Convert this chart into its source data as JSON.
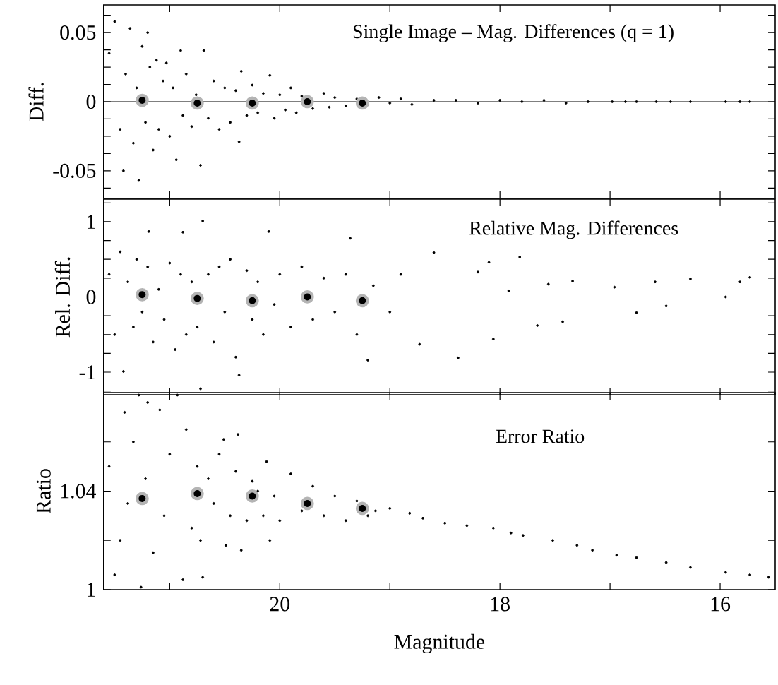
{
  "chart_data": [
    {
      "type": "scatter",
      "title": "Single Image – Mag. Differences (q = 1)",
      "ylabel": "Diff.",
      "xlim": [
        21.6,
        15.5
      ],
      "ylim": [
        -0.07,
        0.07
      ],
      "xticks": [
        {
          "value": 21,
          "label": null
        },
        20,
        {
          "value": 19,
          "label": null
        },
        18,
        {
          "value": 17,
          "label": null
        },
        16
      ],
      "yticks": [
        {
          "value": -0.0625,
          "label": null
        },
        -0.05,
        {
          "value": -0.0375,
          "label": null
        },
        {
          "value": -0.025,
          "label": null
        },
        {
          "value": -0.0125,
          "label": null
        },
        0,
        {
          "value": 0.0125,
          "label": null
        },
        {
          "value": 0.025,
          "label": null
        },
        {
          "value": 0.0375,
          "label": null
        },
        0.05,
        {
          "value": 0.0625,
          "label": null
        }
      ],
      "tick_labels": "y",
      "marker": "circle",
      "ref_lines": [
        {
          "axis": "y",
          "value": 0,
          "color": "#000000"
        }
      ],
      "series": [
        {
          "color": "#000000",
          "x": [
            21.55,
            21.5,
            21.45,
            21.42,
            21.4,
            21.36,
            21.33,
            21.3,
            21.28,
            21.25,
            21.22,
            21.2,
            21.18,
            21.15,
            21.12,
            21.1,
            21.06,
            21.03,
            21.0,
            20.97,
            20.94,
            20.9,
            20.88,
            20.85,
            20.8,
            20.76,
            20.72,
            20.69,
            20.65,
            20.6,
            20.55,
            20.5,
            20.45,
            20.4,
            20.37,
            20.35,
            20.3,
            20.25,
            20.2,
            20.15,
            20.09,
            20.05,
            20.0,
            19.95,
            19.9,
            19.85,
            19.8,
            19.7,
            19.6,
            19.55,
            19.5,
            19.4,
            19.3,
            19.2,
            19.1,
            19.0,
            18.9,
            18.8,
            18.6,
            18.4,
            18.2,
            18.0,
            17.8,
            17.6,
            17.4,
            17.2,
            16.98,
            16.86,
            16.76,
            16.58,
            16.45,
            16.27,
            15.95,
            15.82,
            15.73
          ],
          "values": [
            0.035,
            0.058,
            -0.02,
            -0.05,
            0.02,
            0.053,
            -0.03,
            0.01,
            -0.057,
            0.04,
            -0.015,
            0.05,
            0.025,
            -0.035,
            0.03,
            -0.02,
            0.015,
            0.028,
            -0.025,
            0.01,
            -0.042,
            0.037,
            -0.01,
            0.02,
            -0.018,
            0.005,
            -0.046,
            0.037,
            -0.012,
            0.015,
            -0.02,
            0.01,
            -0.015,
            0.008,
            -0.029,
            0.022,
            -0.01,
            0.012,
            -0.008,
            0.006,
            0.019,
            -0.012,
            0.005,
            -0.006,
            0.01,
            -0.008,
            0.004,
            -0.005,
            0.006,
            -0.004,
            0.003,
            -0.003,
            0.002,
            -0.002,
            0.003,
            -0.001,
            0.002,
            -0.002,
            0.001,
            0.001,
            -0.001,
            0.001,
            0,
            0.001,
            -0.001,
            0,
            0,
            0,
            0,
            0,
            0,
            0,
            0,
            0,
            0
          ]
        },
        {
          "color": "#b4b4b4",
          "marker": "circle",
          "x": [
            21.25,
            20.75,
            20.25,
            19.75,
            19.25
          ],
          "values": [
            0.001,
            -0.001,
            -0.001,
            0,
            -0.001
          ]
        }
      ]
    },
    {
      "type": "scatter",
      "title": "Relative Mag. Differences",
      "ylabel": "Rel. Diff.",
      "xlim": [
        21.6,
        15.5
      ],
      "ylim": [
        -1.3,
        1.3
      ],
      "xticks": [
        {
          "value": 21,
          "label": null
        },
        20,
        {
          "value": 19,
          "label": null
        },
        18,
        {
          "value": 17,
          "label": null
        },
        16
      ],
      "yticks": [
        {
          "value": -1.25,
          "label": null
        },
        -1,
        {
          "value": -0.75,
          "label": null
        },
        {
          "value": -0.5,
          "label": null
        },
        {
          "value": -0.25,
          "label": null
        },
        0,
        {
          "value": 0.25,
          "label": null
        },
        {
          "value": 0.5,
          "label": null
        },
        {
          "value": 0.75,
          "label": null
        },
        1,
        {
          "value": 1.25,
          "label": null
        }
      ],
      "tick_labels": "y",
      "marker": "circle",
      "ref_lines": [
        {
          "axis": "y",
          "value": 0,
          "color": "#000000"
        }
      ],
      "series": [
        {
          "color": "#000000",
          "x": [
            21.55,
            21.5,
            21.45,
            21.42,
            21.38,
            21.33,
            21.3,
            21.25,
            21.2,
            21.19,
            21.15,
            21.1,
            21.05,
            21.0,
            20.95,
            20.9,
            20.88,
            20.85,
            20.8,
            20.75,
            20.72,
            20.7,
            20.65,
            20.6,
            20.55,
            20.5,
            20.45,
            20.4,
            20.37,
            20.3,
            20.25,
            20.2,
            20.15,
            20.1,
            20.05,
            20.0,
            19.9,
            19.8,
            19.7,
            19.6,
            19.5,
            19.4,
            19.36,
            19.3,
            19.2,
            19.15,
            19.0,
            18.9,
            18.73,
            18.6,
            18.38,
            18.2,
            18.1,
            18.06,
            17.92,
            17.82,
            17.66,
            17.56,
            17.43,
            17.34,
            16.96,
            16.76,
            16.59,
            16.49,
            16.27,
            15.95,
            15.82,
            15.73
          ],
          "values": [
            0.3,
            -0.5,
            0.6,
            -0.99,
            0.2,
            -0.4,
            0.5,
            -0.2,
            0.4,
            0.87,
            -0.6,
            0.1,
            -0.3,
            0.45,
            -0.7,
            0.3,
            0.86,
            -0.5,
            0.2,
            -0.4,
            -1.22,
            1.01,
            0.3,
            -0.6,
            0.4,
            -0.2,
            0.5,
            -0.8,
            -1.04,
            0.35,
            -0.3,
            0.2,
            -0.5,
            0.87,
            -0.1,
            0.3,
            -0.4,
            0.4,
            -0.3,
            0.25,
            -0.2,
            0.3,
            0.78,
            -0.5,
            -0.84,
            0.15,
            -0.2,
            0.3,
            -0.63,
            0.59,
            -0.81,
            0.33,
            0.46,
            -0.56,
            0.08,
            0.53,
            -0.38,
            0.17,
            -0.33,
            0.21,
            0.13,
            -0.21,
            0.2,
            -0.12,
            0.24,
            0,
            0.2,
            0.26
          ]
        },
        {
          "color": "#b4b4b4",
          "marker": "circle",
          "x": [
            21.25,
            20.75,
            20.25,
            19.75,
            19.25
          ],
          "values": [
            0.03,
            -0.02,
            -0.05,
            0,
            -0.05
          ]
        }
      ]
    },
    {
      "type": "scatter",
      "title": "Error Ratio",
      "xlabel": "Magnitude",
      "ylabel": "Ratio",
      "xlim": [
        21.6,
        15.5
      ],
      "ylim": [
        1,
        1.08
      ],
      "xticks": [
        {
          "value": 21,
          "label": null
        },
        20,
        {
          "value": 19,
          "label": null
        },
        18,
        {
          "value": 17,
          "label": null
        },
        16
      ],
      "yticks": [
        1,
        {
          "value": 1.02,
          "label": null
        },
        1.04,
        {
          "value": 1.06,
          "label": null
        }
      ],
      "marker": "circle",
      "series": [
        {
          "color": "#000000",
          "x": [
            21.55,
            21.5,
            21.45,
            21.41,
            21.38,
            21.33,
            21.28,
            21.26,
            21.22,
            21.2,
            21.15,
            21.09,
            21.05,
            21.0,
            20.93,
            20.88,
            20.85,
            20.8,
            20.75,
            20.72,
            20.7,
            20.65,
            20.6,
            20.55,
            20.51,
            20.49,
            20.45,
            20.4,
            20.38,
            20.35,
            20.3,
            20.25,
            20.2,
            20.15,
            20.12,
            20.09,
            20.05,
            20.0,
            19.9,
            19.8,
            19.7,
            19.6,
            19.5,
            19.4,
            19.3,
            19.2,
            19.13,
            19.0,
            18.82,
            18.7,
            18.5,
            18.3,
            18.06,
            17.9,
            17.79,
            17.52,
            17.3,
            17.16,
            16.94,
            16.76,
            16.49,
            16.27,
            15.95,
            15.73,
            15.56
          ],
          "values": [
            1.05,
            1.006,
            1.02,
            1.072,
            1.035,
            1.06,
            1.079,
            1.001,
            1.045,
            1.076,
            1.015,
            1.073,
            1.03,
            1.055,
            1.079,
            1.004,
            1.065,
            1.025,
            1.05,
            1.02,
            1.005,
            1.045,
            1.035,
            1.055,
            1.061,
            1.018,
            1.03,
            1.048,
            1.063,
            1.016,
            1.028,
            1.044,
            1.04,
            1.03,
            1.052,
            1.02,
            1.038,
            1.028,
            1.047,
            1.032,
            1.042,
            1.03,
            1.038,
            1.028,
            1.036,
            1.03,
            1.032,
            1.033,
            1.031,
            1.029,
            1.027,
            1.026,
            1.025,
            1.023,
            1.022,
            1.02,
            1.018,
            1.016,
            1.014,
            1.013,
            1.011,
            1.009,
            1.007,
            1.006,
            1.005
          ]
        },
        {
          "color": "#b4b4b4",
          "marker": "circle",
          "x": [
            21.25,
            20.75,
            20.25,
            19.75,
            19.25
          ],
          "values": [
            1.037,
            1.039,
            1.038,
            1.035,
            1.033
          ]
        }
      ]
    }
  ]
}
